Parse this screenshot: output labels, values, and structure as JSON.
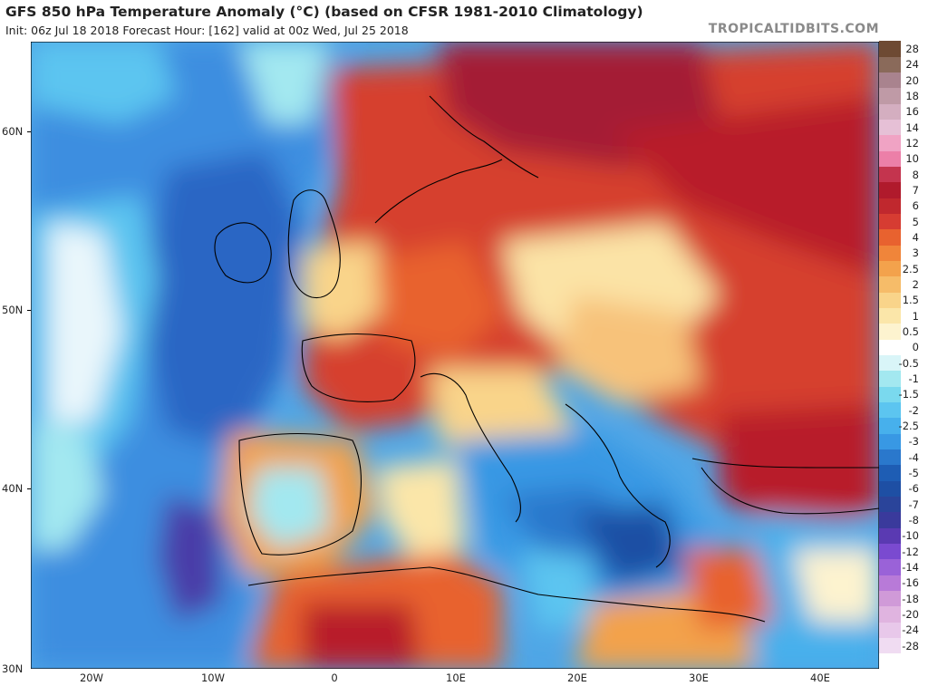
{
  "header": {
    "title": "GFS 850 hPa Temperature Anomaly (°C) (based on CFSR 1981-2010 Climatology)",
    "subtitle": "Init: 06z Jul 18 2018   Forecast Hour: [162]   valid at 00z Wed, Jul 25 2018",
    "brand": "TROPICALTIDBITS.COM"
  },
  "map": {
    "lat_labels": [
      "60N",
      "50N",
      "40N",
      "30N"
    ],
    "lon_labels": [
      "20W",
      "10W",
      "0",
      "10E",
      "20E",
      "30E",
      "40E"
    ]
  },
  "legend": {
    "labels": [
      "28",
      "24",
      "20",
      "18",
      "16",
      "14",
      "12",
      "10",
      "8",
      "7",
      "6",
      "5",
      "4",
      "3",
      "2.5",
      "2",
      "1.5",
      "1",
      "0.5",
      "0",
      "-0.5",
      "-1",
      "-1.5",
      "-2",
      "-2.5",
      "-3",
      "-4",
      "-5",
      "-6",
      "-7",
      "-8",
      "-10",
      "-12",
      "-14",
      "-16",
      "-18",
      "-20",
      "-24",
      "-28"
    ],
    "colors": [
      "#6e4a33",
      "#8a6a5a",
      "#a9838e",
      "#bf9aa6",
      "#d4aec0",
      "#e6c0d6",
      "#f0a3c4",
      "#ec7fa8",
      "#c4344e",
      "#b01a2c",
      "#c0282e",
      "#d63c32",
      "#e8622f",
      "#f0853a",
      "#f3a24c",
      "#f6bc69",
      "#f9d48a",
      "#fbe6a9",
      "#fdf3cf",
      "#ffffff",
      "#d9f5f8",
      "#a3e8f0",
      "#7ad9ee",
      "#5cc5f0",
      "#47b0ec",
      "#3898e4",
      "#2a78cc",
      "#1e5db4",
      "#1e4fa4",
      "#2a449a",
      "#3a3a9c",
      "#5a3ab2",
      "#7a4ad0",
      "#9a62d8",
      "#b87ad8",
      "#d09ad8",
      "#e0b4e0",
      "#e8c8ea",
      "#f0dcf2"
    ]
  },
  "map_features": {
    "cities_visible": false
  }
}
